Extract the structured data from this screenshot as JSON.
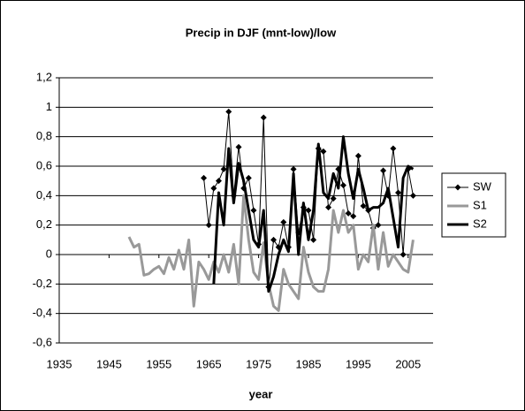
{
  "chart_data": {
    "type": "line",
    "title": "Precip in DJF  (mnt-low)/low",
    "x_label": "year",
    "x": [
      1949,
      1950,
      1951,
      1952,
      1953,
      1954,
      1955,
      1956,
      1957,
      1958,
      1959,
      1960,
      1961,
      1962,
      1963,
      1964,
      1965,
      1966,
      1967,
      1968,
      1969,
      1970,
      1971,
      1972,
      1973,
      1974,
      1975,
      1976,
      1977,
      1978,
      1979,
      1980,
      1981,
      1982,
      1983,
      1984,
      1985,
      1986,
      1987,
      1988,
      1989,
      1990,
      1991,
      1992,
      1993,
      1994,
      1995,
      1996,
      1997,
      1998,
      1999,
      2000,
      2001,
      2002,
      2003,
      2004,
      2005,
      2006
    ],
    "series": [
      {
        "name": "SW",
        "color": "#000000",
        "marker": "diamond",
        "width": 1,
        "values": [
          null,
          null,
          null,
          null,
          null,
          null,
          null,
          null,
          null,
          null,
          null,
          null,
          null,
          null,
          null,
          0.52,
          0.2,
          0.45,
          0.5,
          0.58,
          0.97,
          0.4,
          0.73,
          0.45,
          0.52,
          0.3,
          0.07,
          0.93,
          -0.22,
          0.1,
          0.05,
          0.22,
          0.05,
          0.58,
          0.15,
          0.32,
          0.3,
          0.1,
          0.72,
          0.7,
          0.32,
          0.38,
          0.58,
          0.47,
          0.28,
          0.26,
          0.67,
          0.33,
          0.3,
          0.18,
          0.2,
          0.57,
          0.4,
          0.72,
          0.42,
          0.0,
          0.58,
          0.4
        ]
      },
      {
        "name": "S1",
        "color": "#999999",
        "width": 3,
        "values": [
          0.12,
          0.05,
          0.07,
          -0.14,
          -0.13,
          -0.1,
          -0.08,
          -0.13,
          -0.02,
          -0.1,
          0.03,
          -0.1,
          0.1,
          -0.35,
          -0.05,
          -0.1,
          -0.17,
          -0.05,
          -0.12,
          0.0,
          -0.12,
          0.07,
          -0.2,
          0.4,
          0.1,
          -0.12,
          -0.17,
          0.08,
          -0.2,
          -0.35,
          -0.38,
          -0.1,
          -0.2,
          -0.25,
          -0.3,
          0.05,
          -0.12,
          -0.22,
          -0.25,
          -0.25,
          -0.1,
          0.3,
          0.15,
          0.3,
          0.15,
          0.2,
          -0.1,
          0.0,
          -0.05,
          0.2,
          -0.1,
          0.15,
          -0.08,
          0.0,
          -0.05,
          -0.1,
          -0.12,
          0.1
        ]
      },
      {
        "name": "S2",
        "color": "#000000",
        "width": 3,
        "values": [
          null,
          null,
          null,
          null,
          null,
          null,
          null,
          null,
          null,
          null,
          null,
          null,
          null,
          null,
          null,
          null,
          null,
          -0.2,
          0.42,
          0.2,
          0.72,
          0.35,
          0.62,
          0.5,
          0.3,
          0.1,
          0.05,
          0.3,
          -0.25,
          -0.15,
          0.0,
          0.1,
          0.02,
          0.55,
          0.0,
          0.35,
          0.1,
          0.3,
          0.75,
          0.42,
          0.38,
          0.55,
          0.45,
          0.8,
          0.55,
          0.38,
          0.58,
          0.45,
          0.3,
          0.32,
          0.32,
          0.35,
          0.45,
          0.25,
          0.05,
          0.52,
          0.6,
          0.58
        ]
      }
    ],
    "xlim": [
      1935,
      2010
    ],
    "xticks": [
      1935,
      1945,
      1955,
      1965,
      1975,
      1985,
      1995,
      2005
    ],
    "ylim": [
      -0.6,
      1.2
    ],
    "yticks": [
      {
        "value": -0.6,
        "label": "-0,6"
      },
      {
        "value": -0.4,
        "label": "-0,4"
      },
      {
        "value": -0.2,
        "label": "-0,2"
      },
      0,
      {
        "value": 0.2,
        "label": "0,2"
      },
      {
        "value": 0.4,
        "label": "0,4"
      },
      {
        "value": 0.6,
        "label": "0,6"
      },
      {
        "value": 0.8,
        "label": "0,8"
      },
      1,
      {
        "value": 1.2,
        "label": "1,2"
      }
    ],
    "grid": true,
    "legend": "right"
  }
}
